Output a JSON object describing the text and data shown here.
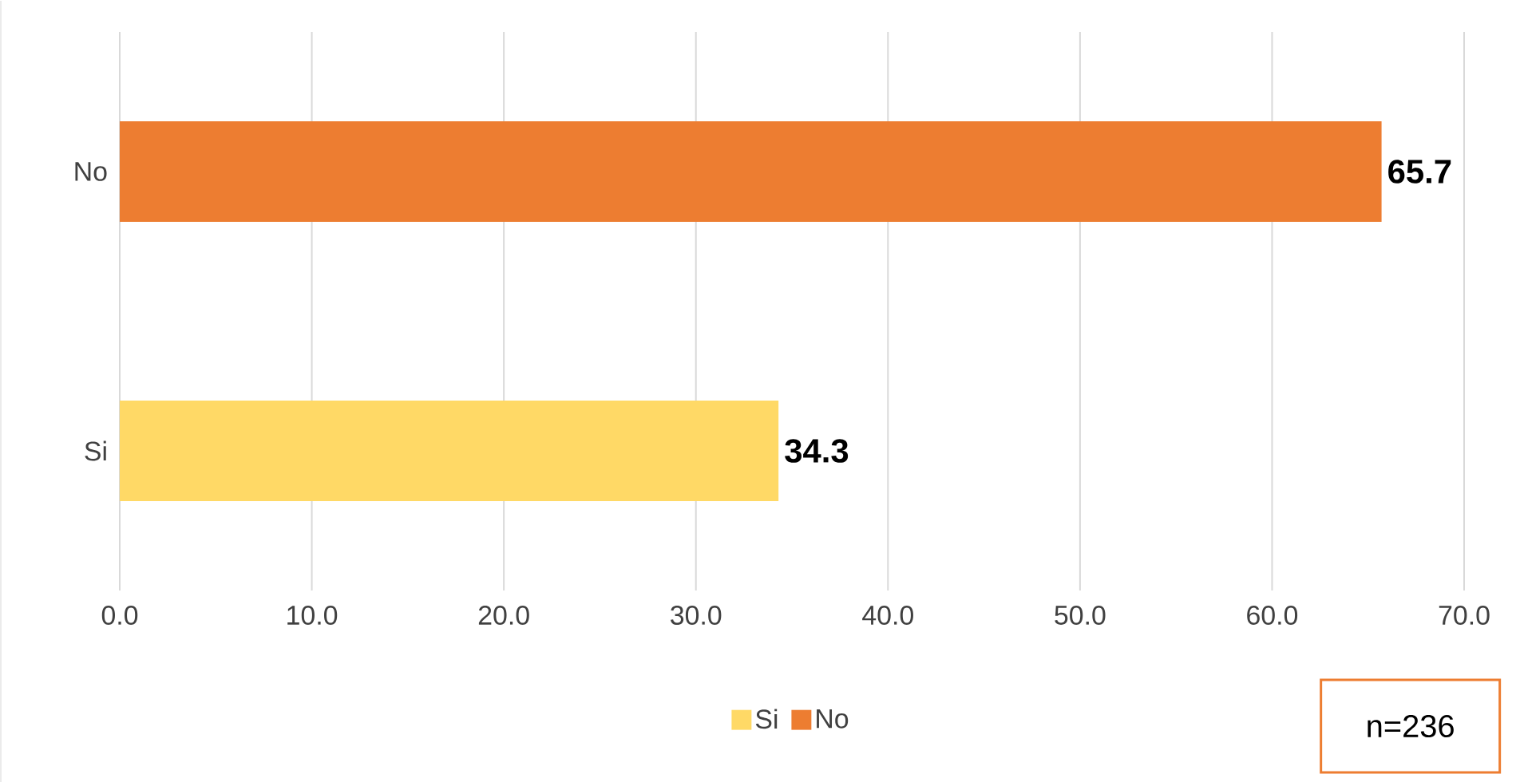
{
  "chart_data": {
    "type": "bar",
    "orientation": "horizontal",
    "categories": [
      "No",
      "Si"
    ],
    "series": [
      {
        "name": "Si",
        "color": "#ffd966",
        "values": [
          null,
          34.3
        ]
      },
      {
        "name": "No",
        "color": "#ed7d31",
        "values": [
          65.7,
          null
        ]
      }
    ],
    "xlim": [
      0,
      70
    ],
    "xticks": [
      {
        "value": 0,
        "label": "0.0"
      },
      {
        "value": 10,
        "label": "10.0"
      },
      {
        "value": 20,
        "label": "20.0"
      },
      {
        "value": 30,
        "label": "30.0"
      },
      {
        "value": 40,
        "label": "40.0"
      },
      {
        "value": 50,
        "label": "50.0"
      },
      {
        "value": 60,
        "label": "60.0"
      },
      {
        "value": 70,
        "label": "70.0"
      }
    ],
    "grid": "x",
    "legend": "bottom",
    "data_labels": true,
    "annotations": [
      "n=236"
    ]
  }
}
